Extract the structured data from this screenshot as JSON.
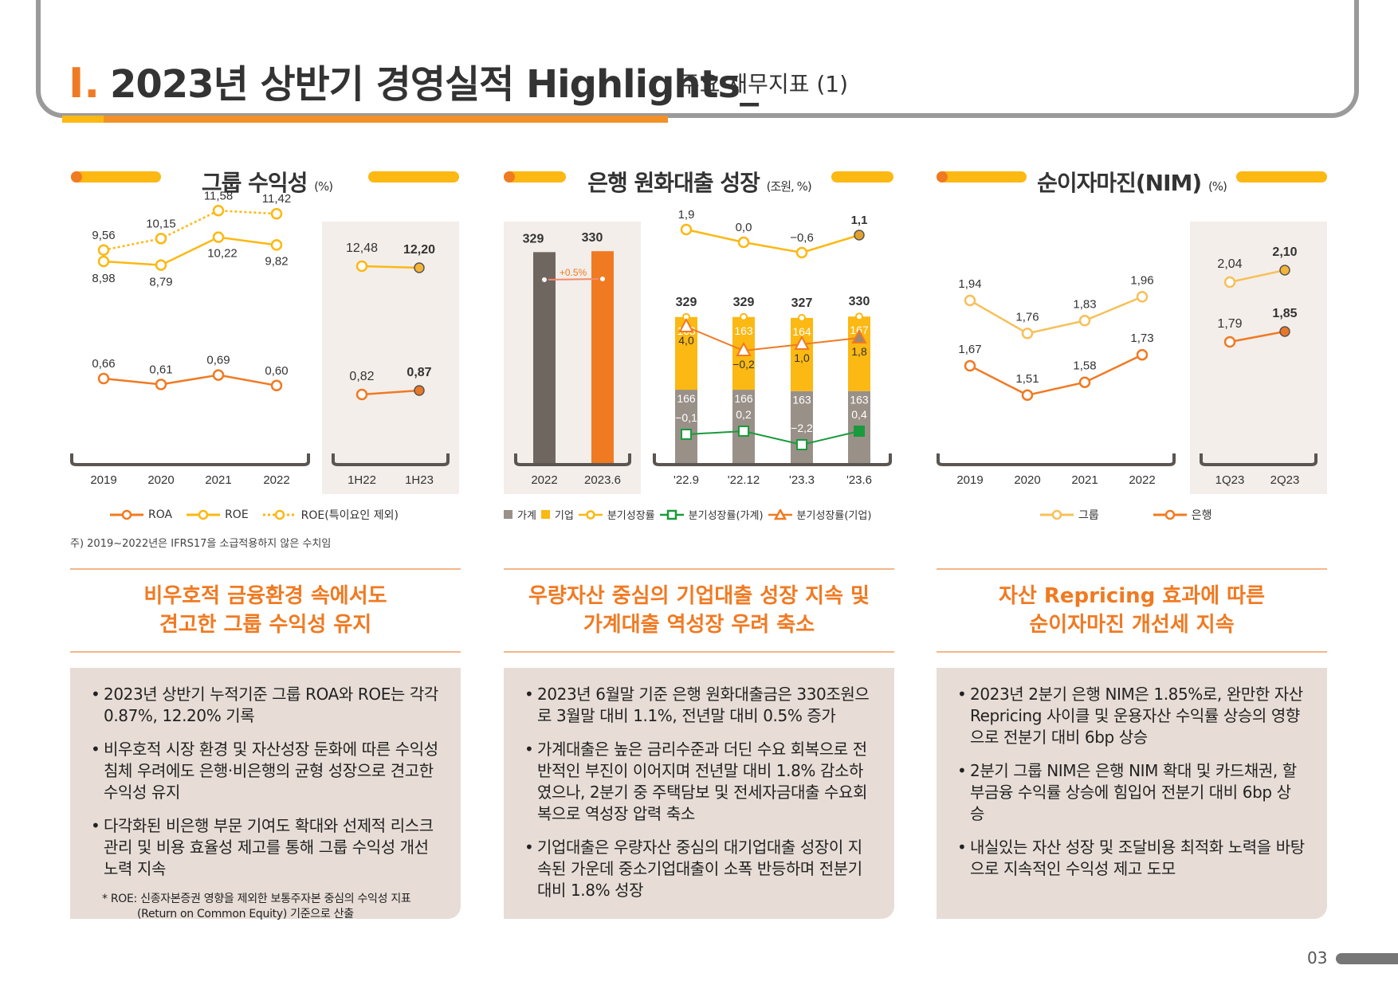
{
  "header": {
    "mark": "I.",
    "title": "2023년 상반기 경영실적 Highlights_",
    "subtitle": "주요 재무지표 (1)"
  },
  "sections": [
    {
      "title": "그룹 수익성",
      "unit": "(%)"
    },
    {
      "title": "은행 원화대출 성장",
      "unit": "(조원, %)"
    },
    {
      "title": "순이자마진(NIM)",
      "unit": "(%)"
    }
  ],
  "legends": {
    "group": [
      "ROA",
      "ROE",
      "ROE(특이요인 제외)"
    ],
    "bank": [
      "가계",
      "기업",
      "분기성장률",
      "분기성장률(가계)",
      "분기성장률(기업)"
    ],
    "nim": [
      "그룹",
      "은행"
    ]
  },
  "note": "주) 2019~2022년은 IFRS17을 소급적용하지 않은 수치임",
  "highlights": [
    [
      "비우호적 금융환경 속에서도",
      "견고한 그룹 수익성 유지"
    ],
    [
      "우량자산 중심의 기업대출 성장 지속 및",
      "가계대출 역성장 우려 축소"
    ],
    [
      "자산 Repricing 효과에 따른",
      "순이자마진 개선세 지속"
    ]
  ],
  "bullets": [
    [
      "2023년 상반기 누적기준 그룹 ROA와 ROE는 각각 0.87%, 12.20% 기록",
      "비우호적 시장 환경 및 자산성장 둔화에 따른 수익성 침체 우려에도 은행·비은행의 균형 성장으로 견고한 수익성 유지",
      "다각화된 비은행 부문 기여도 확대와 선제적 리스크 관리 및 비용 효율성 제고를 통해 그룹 수익성 개선 노력 지속"
    ],
    [
      "2023년 6월말 기준 은행 원화대출금은 330조원으로 3월말 대비 1.1%, 전년말 대비 0.5% 증가",
      "가계대출은 높은 금리수준과 더딘 수요 회복으로 전반적인 부진이 이어지며 전년말 대비 1.8% 감소하였으나, 2분기 중 주택담보 및 전세자금대출 수요회복으로 역성장 압력 축소",
      "기업대출은 우량자산 중심의 대기업대출 성장이 지속된 가운데 중소기업대출이 소폭 반등하며 전분기 대비 1.8% 성장"
    ],
    [
      "2023년 2분기 은행 NIM은 1.85%로, 완만한 자산 Repricing 사이클 및 운용자산 수익률 상승의 영향으로 전분기 대비 6bp 상승",
      "2분기 그룹 NIM은 은행 NIM 확대 및 카드채권, 할부금융 수익률 상승에 힘입어 전분기 대비 6bp 상승",
      "내실있는 자산 성장 및 조달비용 최적화 노력을 바탕으로 지속적인 수익성 제고 도모"
    ]
  ],
  "footnote": [
    "* ROE: 신종자본증권 영향을 제외한 보통주자본 중심의 수익성 지표",
    "(Return on Common Equity) 기준으로 산출"
  ],
  "page": "03",
  "colors": {
    "orange": "#f07a22",
    "yellow": "#fcb813",
    "gray": "#999088",
    "dark": "#706660",
    "green": "#1a9a3c",
    "panel": "#f3eeea"
  },
  "chart_data": [
    {
      "type": "line",
      "name": "그룹 수익성",
      "categories": [
        "2019",
        "2020",
        "2021",
        "2022"
      ],
      "series": [
        {
          "name": "ROE(특이요인 제외)",
          "values": [
            9.56,
            10.15,
            11.58,
            11.42
          ]
        },
        {
          "name": "ROE",
          "values": [
            8.98,
            8.79,
            10.22,
            9.82
          ]
        },
        {
          "name": "ROA",
          "values": [
            0.66,
            0.61,
            0.69,
            0.6
          ]
        }
      ]
    },
    {
      "type": "line",
      "name": "그룹 수익성 반기",
      "categories": [
        "1H22",
        "1H23"
      ],
      "series": [
        {
          "name": "ROE",
          "values": [
            12.48,
            12.2
          ]
        },
        {
          "name": "ROA",
          "values": [
            0.82,
            0.87
          ]
        }
      ]
    },
    {
      "type": "bar",
      "name": "원화대출 연간",
      "categories": [
        "2022",
        "2023.6"
      ],
      "values": [
        329,
        330
      ],
      "annotation": "+0.5%"
    },
    {
      "type": "bar",
      "name": "원화대출 분기",
      "categories": [
        "'22.9",
        "'22.12",
        "'23.3",
        "'23.6"
      ],
      "totals": [
        329,
        329,
        327,
        330
      ],
      "series": [
        {
          "name": "가계",
          "values": [
            166,
            166,
            163,
            163
          ]
        },
        {
          "name": "기업",
          "values": [
            163,
            163,
            164,
            167
          ]
        },
        {
          "name": "분기성장률",
          "values": [
            1.9,
            0.0,
            -0.6,
            1.1
          ]
        },
        {
          "name": "분기성장률(가계)",
          "values": [
            -0.1,
            0.2,
            -2.2,
            0.4
          ]
        },
        {
          "name": "분기성장률(기업)",
          "values": [
            4.0,
            -0.2,
            1.0,
            1.8
          ]
        }
      ]
    },
    {
      "type": "line",
      "name": "NIM 연간",
      "categories": [
        "2019",
        "2020",
        "2021",
        "2022"
      ],
      "series": [
        {
          "name": "그룹",
          "values": [
            1.94,
            1.76,
            1.83,
            1.96
          ]
        },
        {
          "name": "은행",
          "values": [
            1.67,
            1.51,
            1.58,
            1.73
          ]
        }
      ]
    },
    {
      "type": "line",
      "name": "NIM 분기",
      "categories": [
        "1Q23",
        "2Q23"
      ],
      "series": [
        {
          "name": "그룹",
          "values": [
            2.04,
            2.1
          ]
        },
        {
          "name": "은행",
          "values": [
            1.79,
            1.85
          ]
        }
      ]
    }
  ]
}
